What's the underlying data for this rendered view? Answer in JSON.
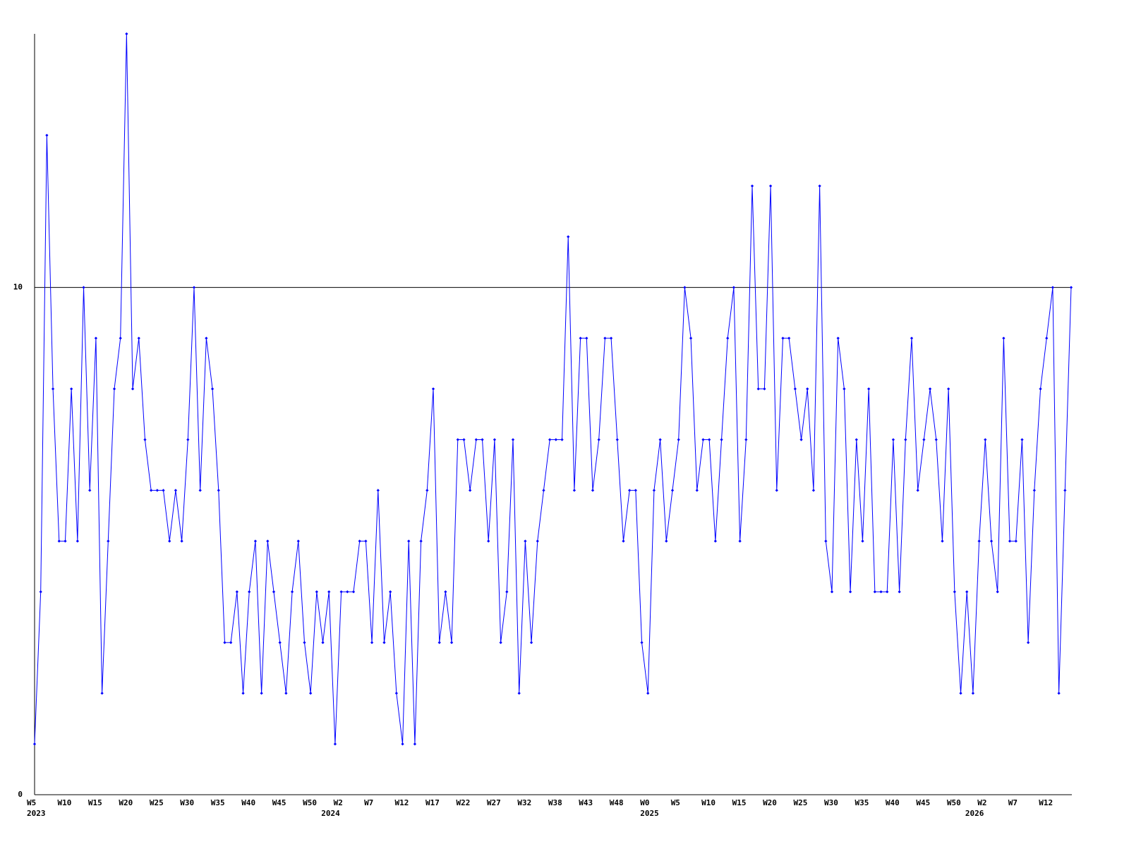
{
  "chart_data": {
    "type": "line",
    "categories": [
      "W5",
      null,
      null,
      null,
      null,
      "W10",
      null,
      null,
      null,
      null,
      "W15",
      null,
      null,
      null,
      null,
      "W20",
      null,
      null,
      null,
      null,
      "W25",
      null,
      null,
      null,
      null,
      "W30",
      null,
      null,
      null,
      null,
      "W35",
      null,
      null,
      null,
      null,
      "W40",
      null,
      null,
      null,
      null,
      "W45",
      null,
      null,
      null,
      null,
      "W50",
      null,
      null,
      null,
      null,
      "W2",
      null,
      null,
      null,
      null,
      "W7",
      null,
      null,
      null,
      null,
      "W12",
      null,
      null,
      null,
      null,
      "W17",
      null,
      null,
      null,
      null,
      "W22",
      null,
      null,
      null,
      null,
      "W27",
      null,
      null,
      null,
      null,
      "W32",
      null,
      null,
      null,
      null,
      "W38",
      null,
      null,
      null,
      null,
      "W43",
      null,
      null,
      null,
      null,
      "W48",
      null,
      null,
      null,
      null,
      "W0",
      null,
      null,
      null,
      null,
      "W5",
      null,
      null,
      null,
      null,
      "W10",
      null,
      null,
      null,
      null,
      "W15",
      null,
      null,
      null,
      null,
      "W20",
      null,
      null,
      null,
      null,
      "W25",
      null,
      null,
      null,
      null,
      "W30",
      null,
      null,
      null,
      null,
      "W35",
      null,
      null,
      null,
      null,
      "W40",
      null,
      null,
      null,
      null,
      "W45",
      null,
      null,
      null,
      null,
      "W50",
      null,
      null,
      null,
      null,
      "W2",
      null,
      null,
      null,
      null,
      "W7",
      null,
      null,
      null,
      null,
      "W12",
      null,
      null,
      null,
      null
    ],
    "category_years": [
      "2023",
      null,
      null,
      null,
      null,
      null,
      null,
      null,
      null,
      null,
      null,
      null,
      null,
      null,
      null,
      null,
      null,
      null,
      null,
      null,
      null,
      null,
      null,
      null,
      null,
      null,
      null,
      null,
      null,
      null,
      null,
      null,
      null,
      null,
      null,
      null,
      null,
      null,
      null,
      null,
      null,
      null,
      null,
      null,
      null,
      null,
      null,
      null,
      "2024",
      null,
      null,
      null,
      null,
      null,
      null,
      null,
      null,
      null,
      null,
      null,
      null,
      null,
      null,
      null,
      null,
      null,
      null,
      null,
      null,
      null,
      null,
      null,
      null,
      null,
      null,
      null,
      null,
      null,
      null,
      null,
      null,
      null,
      null,
      null,
      null,
      null,
      null,
      null,
      null,
      null,
      null,
      null,
      null,
      null,
      null,
      null,
      null,
      null,
      null,
      null,
      "2025",
      null,
      null,
      null,
      null,
      null,
      null,
      null,
      null,
      null,
      null,
      null,
      null,
      null,
      null,
      null,
      null,
      null,
      null,
      null,
      null,
      null,
      null,
      null,
      null,
      null,
      null,
      null,
      null,
      null,
      null,
      null,
      null,
      null,
      null,
      null,
      null,
      null,
      null,
      null,
      null,
      null,
      null,
      null,
      null,
      null,
      null,
      null,
      null,
      null,
      null,
      null,
      null,
      "2026",
      null,
      null,
      null,
      null,
      null,
      null,
      null,
      null,
      null,
      null,
      null,
      null,
      null,
      null,
      null,
      null
    ],
    "values": [
      1,
      4,
      13,
      8,
      5,
      5,
      8,
      5,
      10,
      6,
      9,
      2,
      5,
      8,
      9,
      15,
      8,
      9,
      7,
      6,
      6,
      6,
      5,
      6,
      5,
      7,
      10,
      6,
      9,
      8,
      6,
      3,
      3,
      4,
      2,
      4,
      5,
      2,
      5,
      4,
      3,
      2,
      4,
      5,
      3,
      2,
      4,
      3,
      4,
      1,
      4,
      4,
      4,
      5,
      5,
      3,
      6,
      3,
      4,
      2,
      1,
      5,
      1,
      5,
      6,
      8,
      3,
      4,
      3,
      7,
      7,
      6,
      7,
      7,
      5,
      7,
      3,
      4,
      7,
      2,
      5,
      3,
      5,
      6,
      7,
      7,
      7,
      11,
      6,
      9,
      9,
      6,
      7,
      9,
      9,
      7,
      5,
      6,
      6,
      3,
      2,
      6,
      7,
      5,
      6,
      7,
      10,
      9,
      6,
      7,
      7,
      5,
      7,
      9,
      10,
      5,
      7,
      12,
      8,
      8,
      12,
      6,
      9,
      9,
      8,
      7,
      8,
      6,
      12,
      5,
      4,
      9,
      8,
      4,
      7,
      5,
      8,
      4,
      4,
      4,
      7,
      4,
      7,
      9,
      6,
      7,
      8,
      7,
      5,
      8,
      4,
      2,
      4,
      2,
      5,
      7,
      5,
      4,
      9,
      5,
      5,
      7,
      3,
      6,
      8,
      9,
      10,
      2,
      6,
      10
    ],
    "color": "#0000ff",
    "ylim": [
      0,
      15
    ],
    "yticks": [
      0,
      10
    ],
    "grid": true
  }
}
